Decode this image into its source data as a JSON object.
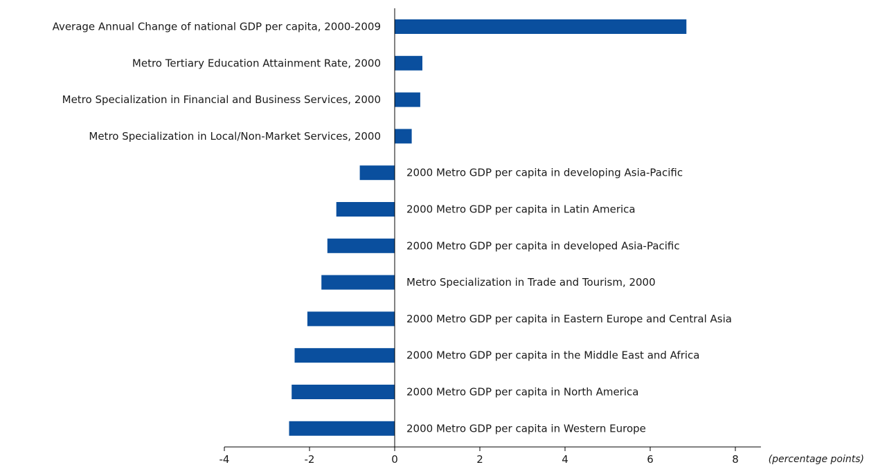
{
  "chart_data": {
    "type": "bar",
    "orientation": "horizontal",
    "categories": [
      "Average Annual Change of national GDP per capita, 2000-2009",
      "Metro Tertiary Education Attainment Rate, 2000",
      "Metro Specialization in Financial and Business Services, 2000",
      "Metro Specialization in Local/Non-Market Services, 2000",
      "2000 Metro GDP per capita in developing Asia-Pacific",
      "2000 Metro GDP per capita in Latin America",
      "2000 Metro GDP per capita in developed Asia-Pacific",
      "Metro Specialization in Trade and Tourism, 2000",
      "2000 Metro GDP per capita in Eastern Europe and Central Asia",
      "2000 Metro GDP per capita in the Middle East and Africa",
      "2000 Metro GDP per capita in North America",
      "2000 Metro GDP per capita in Western Europe"
    ],
    "values": [
      6.85,
      0.65,
      0.6,
      0.4,
      -0.82,
      -1.37,
      -1.58,
      -1.72,
      -2.05,
      -2.35,
      -2.42,
      -2.48
    ],
    "xlim": [
      -4,
      8.6
    ],
    "xticks": [
      -4,
      -2,
      0,
      2,
      4,
      6,
      8
    ],
    "xticklabels": [
      "-4",
      "-2",
      "0",
      "2",
      "4",
      "6",
      "8"
    ],
    "xlabel": "(percentage points)",
    "title": "",
    "ylabel": "",
    "grid": false,
    "legend": "none",
    "bar_color": "#0a4f9e"
  }
}
